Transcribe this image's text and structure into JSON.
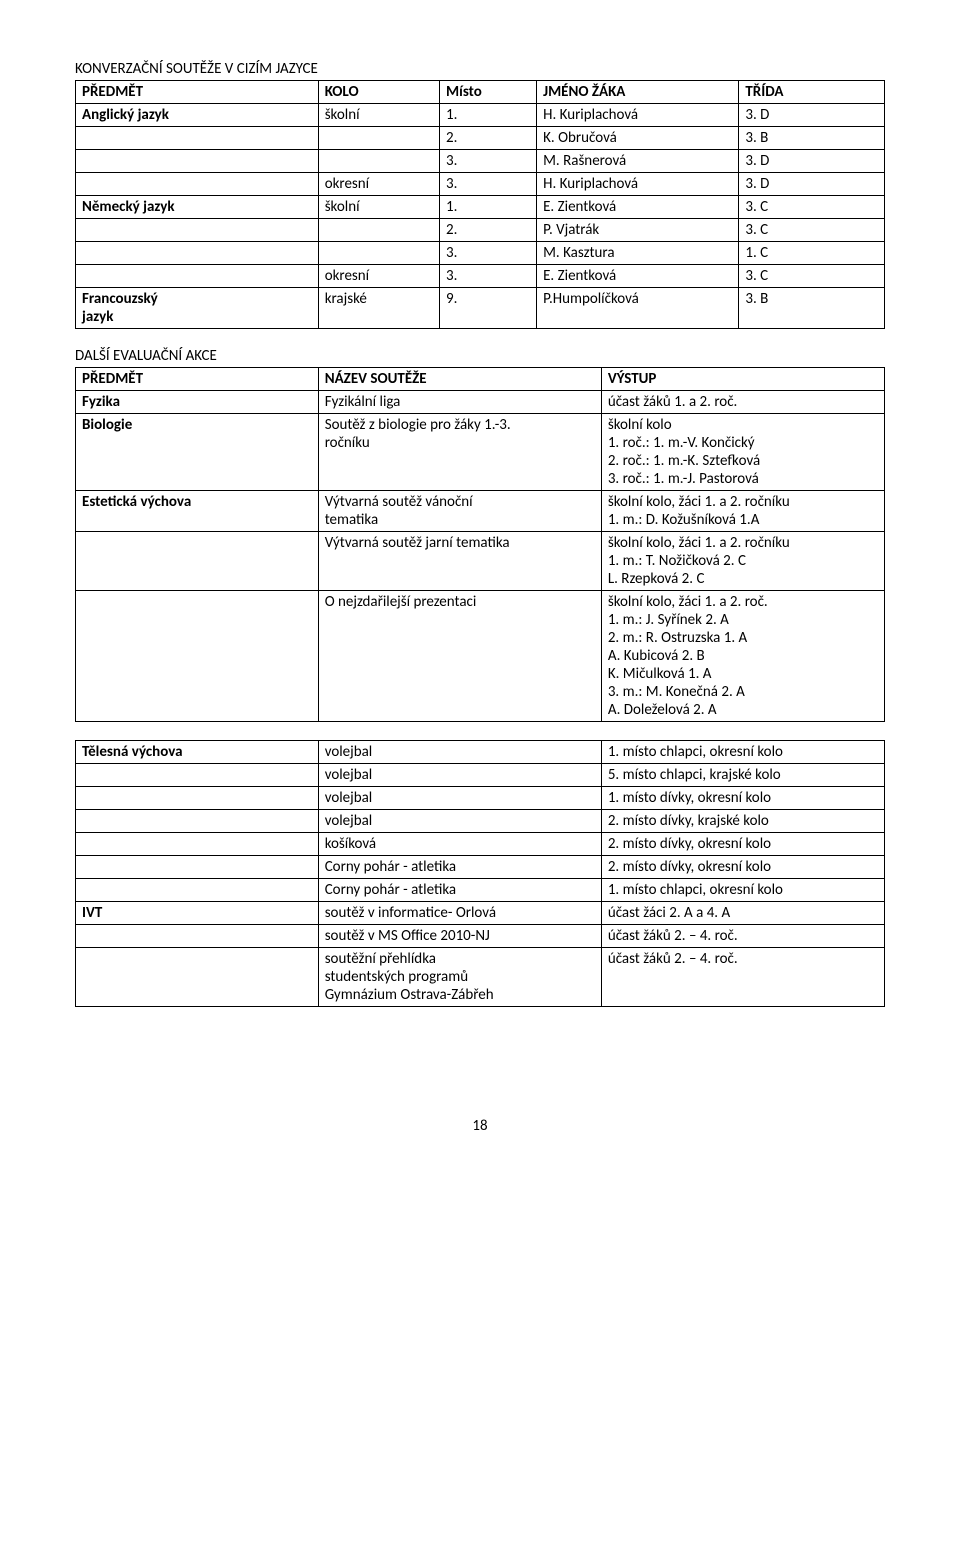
{
  "section1": {
    "title": "KONVERZAČNÍ SOUTĚŽE V CIZÍM JAZYCE",
    "headers": [
      "PŘEDMĚT",
      "KOLO",
      "Místo",
      "JMÉNO ŽÁKA",
      "TŘÍDA"
    ],
    "rows": [
      [
        "Anglický jazyk",
        "školní",
        "1.",
        "H. Kuriplachová",
        "3. D"
      ],
      [
        "",
        "",
        "2.",
        "K. Obručová",
        "3. B"
      ],
      [
        "",
        "",
        "3.",
        "M. Rašnerová",
        "3. D"
      ],
      [
        "",
        "okresní",
        "3.",
        "H. Kuriplachová",
        "3. D"
      ],
      [
        "Německý jazyk",
        "školní",
        "1.",
        "E. Zientková",
        "3. C"
      ],
      [
        "",
        "",
        "2.",
        "P. Vjatrák",
        "3. C"
      ],
      [
        "",
        "",
        "3.",
        "M. Kasztura",
        "1. C"
      ],
      [
        "",
        "okresní",
        "3.",
        "E. Zientková",
        "3. C"
      ],
      [
        "Francouzský\njazyk",
        "krajské",
        "9.",
        "P.Humpolíčková",
        "3. B"
      ]
    ]
  },
  "section2": {
    "title": "DALŠÍ EVALUAČNÍ AKCE",
    "headers": [
      "PŘEDMĚT",
      "NÁZEV SOUTĚŽE",
      "VÝSTUP"
    ],
    "rows": [
      [
        "Fyzika",
        "Fyzikální liga",
        "účast žáků 1. a 2. roč."
      ],
      [
        "Biologie",
        "Soutěž z biologie pro žáky 1.-3.\nročníku",
        "školní kolo\n1. roč.: 1. m.-V. Končický\n2. roč.: 1. m.-K. Sztefková\n3. roč.: 1. m.-J. Pastorová"
      ],
      [
        "Estetická výchova",
        "Výtvarná soutěž vánoční\ntematika",
        "školní kolo, žáci 1. a 2. ročníku\n1. m.: D. Kožušníková 1.A"
      ],
      [
        "",
        "Výtvarná soutěž jarní tematika",
        "školní kolo, žáci 1. a 2. ročníku\n1. m.: T. Nožičková 2. C\n         L. Rzepková 2. C"
      ],
      [
        "",
        "O nejzdařilejší prezentaci",
        "školní kolo, žáci 1. a 2. roč.\n1. m.: J. Syřínek 2. A\n2. m.: R. Ostruzska 1. A\n            A. Kubicová 2. B\n            K. Mičulková 1. A\n3. m.: M. Konečná 2. A\n            A. Doleželová 2. A"
      ]
    ]
  },
  "section3": {
    "rows": [
      [
        "Tělesná výchova",
        "volejbal",
        "1. místo chlapci, okresní kolo"
      ],
      [
        "",
        "volejbal",
        "5. místo chlapci, krajské kolo"
      ],
      [
        "",
        "volejbal",
        "1. místo dívky, okresní kolo"
      ],
      [
        "",
        "volejbal",
        "2. místo dívky, krajské kolo"
      ],
      [
        "",
        "košíková",
        "2. místo dívky, okresní kolo"
      ],
      [
        "",
        "Corny pohár - atletika",
        "2. místo dívky, okresní kolo"
      ],
      [
        "",
        "Corny pohár - atletika",
        "1. místo chlapci, okresní kolo"
      ],
      [
        "IVT",
        "soutěž v informatice- Orlová",
        "účast žáci 2. A a 4. A"
      ],
      [
        "",
        "soutěž v MS Office 2010-NJ",
        "účast žáků 2. – 4. roč."
      ],
      [
        "",
        "soutěžní přehlídka\nstudentských programů\nGymnázium Ostrava-Zábřeh",
        "účast žáků 2. – 4. roč."
      ]
    ]
  },
  "pageNumber": "18",
  "boldCells": {
    "t1": {
      "headerRow": true,
      "cells": [
        [
          0,
          0
        ],
        [
          4,
          0
        ],
        [
          8,
          0
        ]
      ]
    },
    "t2": {
      "headerRow": true,
      "cells": [
        [
          0,
          0
        ],
        [
          1,
          0
        ],
        [
          2,
          0
        ]
      ]
    },
    "t3": {
      "cells": [
        [
          0,
          0
        ],
        [
          7,
          0
        ]
      ]
    }
  }
}
